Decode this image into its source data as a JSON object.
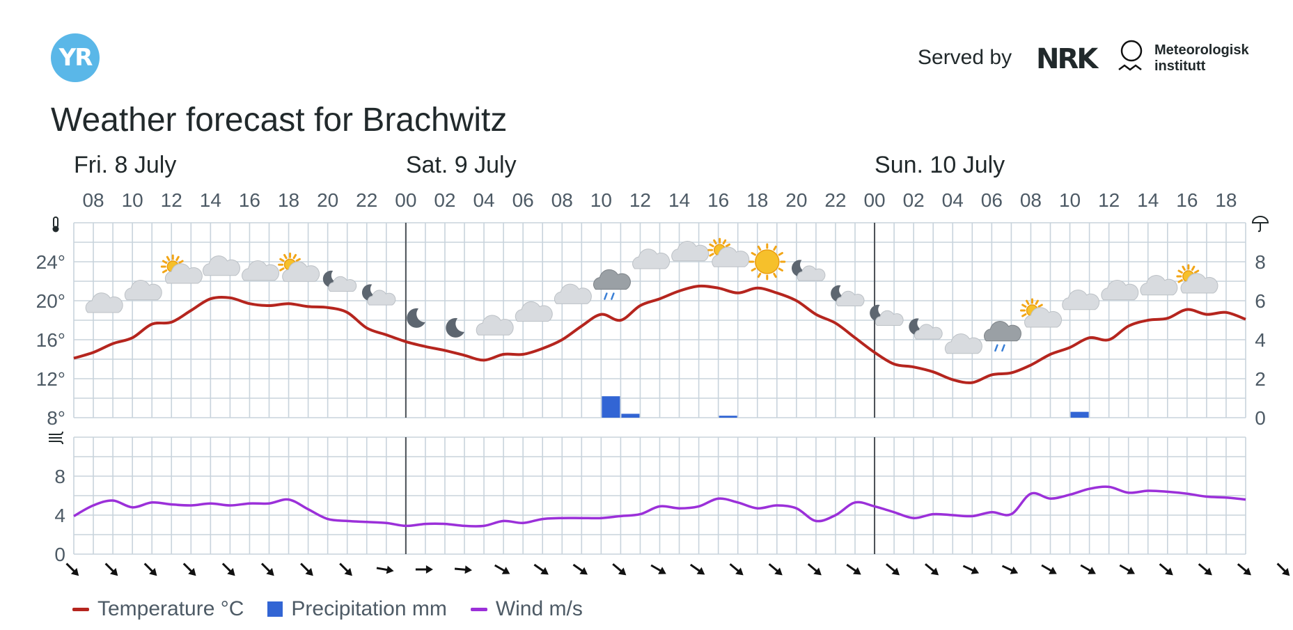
{
  "header": {
    "logo_text": "YR",
    "served_by": "Served by",
    "nrk_text": "NRK",
    "met_text_line1": "Meteorologisk",
    "met_text_line2": "institutt"
  },
  "title": "Weather forecast for Brachwitz",
  "legend": {
    "temperature": "Temperature °C",
    "precipitation": "Precipitation mm",
    "wind": "Wind m/s"
  },
  "colors": {
    "temperature": "#b5251e",
    "precipitation": "#3265d4",
    "wind": "#9b30d9",
    "grid": "#c8d3dc",
    "logo": "#5ab7e8"
  },
  "chart_data": [
    {
      "type": "line",
      "days": [
        {
          "label": "Fri. 8 July",
          "start_hour": 7
        },
        {
          "label": "Sat. 9 July",
          "start_hour": 24
        },
        {
          "label": "Sun. 10 July",
          "start_hour": 48
        }
      ],
      "x_start_hour": 7,
      "x_end_hour": 67,
      "tick_labels": [
        "08",
        "10",
        "12",
        "14",
        "16",
        "18",
        "20",
        "22",
        "00",
        "02",
        "04",
        "06",
        "08",
        "10",
        "12",
        "14",
        "16",
        "18",
        "20",
        "22",
        "00",
        "02",
        "04",
        "06",
        "08",
        "10",
        "12",
        "14",
        "16",
        "18"
      ],
      "y_left": {
        "icon": "thermometer-icon",
        "ticks": [
          "24°",
          "20°",
          "16°",
          "12°",
          "8°"
        ],
        "min": 8,
        "max": 28
      },
      "y_right": {
        "icon": "umbrella-icon",
        "ticks": [
          "8",
          "6",
          "4",
          "2",
          "0"
        ],
        "min": 0,
        "max": 10
      },
      "series": [
        {
          "name": "Temperature °C",
          "x": [
            7,
            8,
            9,
            10,
            11,
            12,
            13,
            14,
            15,
            16,
            17,
            18,
            19,
            20,
            21,
            22,
            23,
            24,
            25,
            26,
            27,
            28,
            29,
            30,
            31,
            32,
            33,
            34,
            35,
            36,
            37,
            38,
            39,
            40,
            41,
            42,
            43,
            44,
            45,
            46,
            47,
            48,
            49,
            50,
            51,
            52,
            53,
            54,
            55,
            56,
            57,
            58,
            59,
            60,
            61,
            62,
            63,
            64,
            65,
            66,
            67
          ],
          "values": [
            14.1,
            14.7,
            15.6,
            16.2,
            17.6,
            17.8,
            19.0,
            20.2,
            20.3,
            19.7,
            19.5,
            19.7,
            19.4,
            19.3,
            18.8,
            17.2,
            16.5,
            15.8,
            15.3,
            14.9,
            14.4,
            13.9,
            14.5,
            14.5,
            15.1,
            16.0,
            17.4,
            18.6,
            18.0,
            19.5,
            20.2,
            21.0,
            21.5,
            21.3,
            20.8,
            21.3,
            20.8,
            20.0,
            18.6,
            17.7,
            16.2,
            14.7,
            13.5,
            13.2,
            12.7,
            11.9,
            11.6,
            12.4,
            12.6,
            13.4,
            14.5,
            15.2,
            16.2,
            16.0,
            17.4,
            18.0,
            18.2,
            19.1,
            18.6,
            18.8,
            18.1
          ]
        },
        {
          "name": "Precipitation mm",
          "bars": [
            {
              "x": 34,
              "value": 1.1
            },
            {
              "x": 35,
              "value": 0.2
            },
            {
              "x": 40,
              "value": 0.1
            },
            {
              "x": 58,
              "value": 0.3
            }
          ]
        }
      ],
      "weather_symbols": [
        {
          "x": 8,
          "temp": 19.5,
          "icon": "cloudy-icon"
        },
        {
          "x": 10,
          "temp": 20.8,
          "icon": "cloudy-icon"
        },
        {
          "x": 12,
          "temp": 22.5,
          "icon": "partly-cloudy-day-icon"
        },
        {
          "x": 14,
          "temp": 23.3,
          "icon": "cloudy-icon"
        },
        {
          "x": 16,
          "temp": 22.8,
          "icon": "cloudy-icon"
        },
        {
          "x": 18,
          "temp": 22.7,
          "icon": "partly-cloudy-day-icon"
        },
        {
          "x": 20,
          "temp": 21.5,
          "icon": "partly-cloudy-night-icon"
        },
        {
          "x": 22,
          "temp": 20.1,
          "icon": "partly-cloudy-night-icon"
        },
        {
          "x": 24,
          "temp": 18.2,
          "icon": "clear-night-icon"
        },
        {
          "x": 26,
          "temp": 17.2,
          "icon": "clear-night-icon"
        },
        {
          "x": 28,
          "temp": 17.2,
          "icon": "cloudy-icon"
        },
        {
          "x": 30,
          "temp": 18.6,
          "icon": "cloudy-icon"
        },
        {
          "x": 32,
          "temp": 20.4,
          "icon": "cloudy-icon"
        },
        {
          "x": 34,
          "temp": 21.6,
          "icon": "light-rain-icon"
        },
        {
          "x": 36,
          "temp": 24.0,
          "icon": "cloudy-icon"
        },
        {
          "x": 38,
          "temp": 24.8,
          "icon": "cloudy-icon"
        },
        {
          "x": 40,
          "temp": 24.2,
          "icon": "partly-cloudy-day-icon"
        },
        {
          "x": 42,
          "temp": 24.0,
          "icon": "clear-day-icon"
        },
        {
          "x": 44,
          "temp": 22.6,
          "icon": "partly-cloudy-night-icon"
        },
        {
          "x": 46,
          "temp": 20.0,
          "icon": "partly-cloudy-night-icon"
        },
        {
          "x": 48,
          "temp": 18.0,
          "icon": "partly-cloudy-night-icon"
        },
        {
          "x": 50,
          "temp": 16.6,
          "icon": "partly-cloudy-night-icon"
        },
        {
          "x": 52,
          "temp": 15.3,
          "icon": "cloudy-icon"
        },
        {
          "x": 54,
          "temp": 16.3,
          "icon": "light-rain-icon"
        },
        {
          "x": 56,
          "temp": 18.0,
          "icon": "partly-cloudy-day-icon"
        },
        {
          "x": 58,
          "temp": 19.8,
          "icon": "cloudy-icon"
        },
        {
          "x": 60,
          "temp": 20.8,
          "icon": "cloudy-icon"
        },
        {
          "x": 62,
          "temp": 21.3,
          "icon": "cloudy-icon"
        },
        {
          "x": 64,
          "temp": 21.5,
          "icon": "partly-cloudy-day-icon"
        }
      ]
    },
    {
      "type": "line",
      "y_left": {
        "icon": "wind-icon",
        "ticks": [
          "8",
          "4",
          "0"
        ],
        "min": 0,
        "max": 12
      },
      "series": [
        {
          "name": "Wind m/s",
          "x": [
            7,
            8,
            9,
            10,
            11,
            12,
            13,
            14,
            15,
            16,
            17,
            18,
            19,
            20,
            21,
            22,
            23,
            24,
            25,
            26,
            27,
            28,
            29,
            30,
            31,
            32,
            33,
            34,
            35,
            36,
            37,
            38,
            39,
            40,
            41,
            42,
            43,
            44,
            45,
            46,
            47,
            48,
            49,
            50,
            51,
            52,
            53,
            54,
            55,
            56,
            57,
            58,
            59,
            60,
            61,
            62,
            63,
            64,
            65,
            66,
            67
          ],
          "values": [
            3.9,
            5.0,
            5.5,
            4.8,
            5.3,
            5.1,
            5.0,
            5.2,
            5.0,
            5.2,
            5.2,
            5.6,
            4.6,
            3.6,
            3.4,
            3.3,
            3.2,
            2.9,
            3.1,
            3.1,
            2.9,
            2.9,
            3.4,
            3.2,
            3.6,
            3.7,
            3.7,
            3.7,
            3.9,
            4.1,
            4.9,
            4.7,
            4.9,
            5.7,
            5.3,
            4.7,
            5.0,
            4.7,
            3.4,
            4.0,
            5.3,
            4.9,
            4.3,
            3.7,
            4.1,
            4.0,
            3.9,
            4.3,
            4.1,
            6.2,
            5.7,
            6.1,
            6.7,
            6.9,
            6.3,
            6.5,
            6.4,
            6.2,
            5.9,
            5.8,
            5.6
          ]
        }
      ],
      "wind_directions_deg": [
        135,
        135,
        135,
        135,
        135,
        135,
        135,
        135,
        100,
        90,
        95,
        120,
        125,
        125,
        130,
        120,
        125,
        130,
        130,
        130,
        125,
        130,
        130,
        115,
        115,
        120,
        120,
        120,
        130,
        130,
        130,
        135,
        130
      ]
    }
  ]
}
